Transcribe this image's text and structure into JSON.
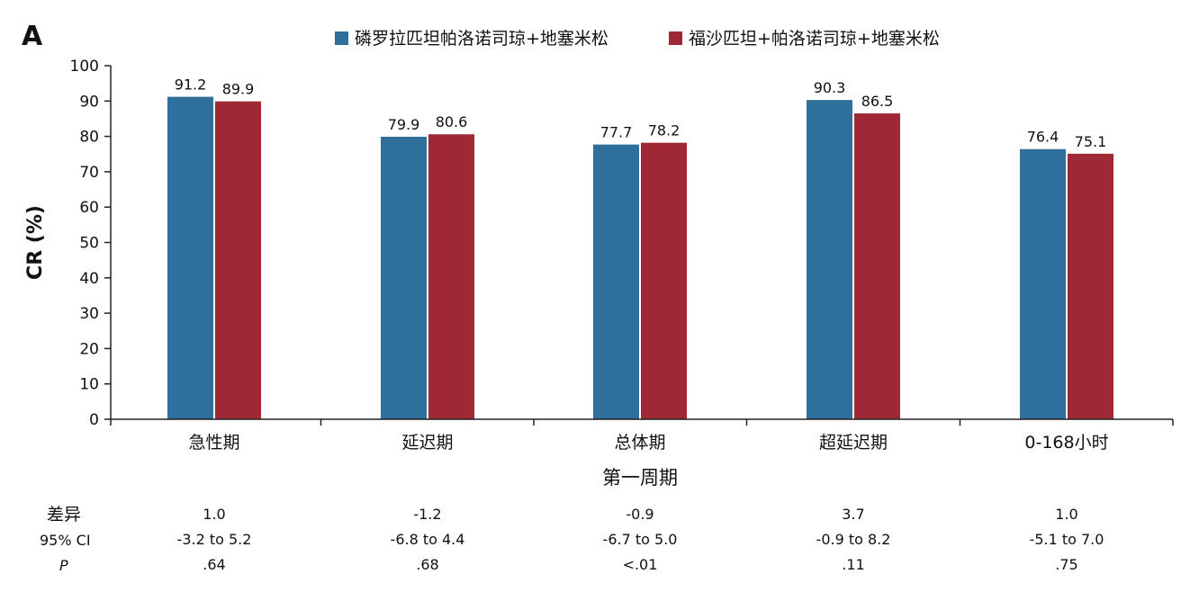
{
  "panel_label": "A",
  "chart_data": {
    "type": "bar",
    "title": "",
    "xlabel": "第一周期",
    "ylabel": "CR (%)",
    "ylim": [
      0,
      100
    ],
    "yticks": [
      0,
      10,
      20,
      30,
      40,
      50,
      60,
      70,
      80,
      90,
      100
    ],
    "categories": [
      "急性期",
      "延迟期",
      "总体期",
      "超延迟期",
      "0-168小时"
    ],
    "series": [
      {
        "name": "磷罗拉匹坦帕洛诺司琼+地塞米松",
        "color": "#2e6f9b",
        "values": [
          91.2,
          79.9,
          77.7,
          90.3,
          76.4
        ],
        "labels": [
          "91.2",
          "79.9",
          "77.7",
          "90.3",
          "76.4"
        ]
      },
      {
        "name": "福沙匹坦+帕洛诺司琼+地塞米松",
        "color": "#9e2834",
        "values": [
          89.9,
          80.6,
          78.2,
          86.5,
          75.1
        ],
        "labels": [
          "89.9",
          "80.6",
          "78.2",
          "86.5",
          "75.1"
        ]
      }
    ],
    "legend_position": "top",
    "grid": false,
    "stats_table": {
      "rows": [
        {
          "label": "差异",
          "italic": false,
          "values": [
            "1.0",
            "-1.2",
            "-0.9",
            "3.7",
            "1.0"
          ]
        },
        {
          "label": "95% CI",
          "italic": false,
          "values": [
            "-3.2 to 5.2",
            "-6.8 to 4.4",
            "-6.7 to 5.0",
            "-0.9 to 8.2",
            "-5.1 to 7.0"
          ]
        },
        {
          "label": "P",
          "italic": true,
          "values": [
            ".64",
            ".68",
            "<.01",
            ".11",
            ".75"
          ]
        }
      ]
    }
  }
}
